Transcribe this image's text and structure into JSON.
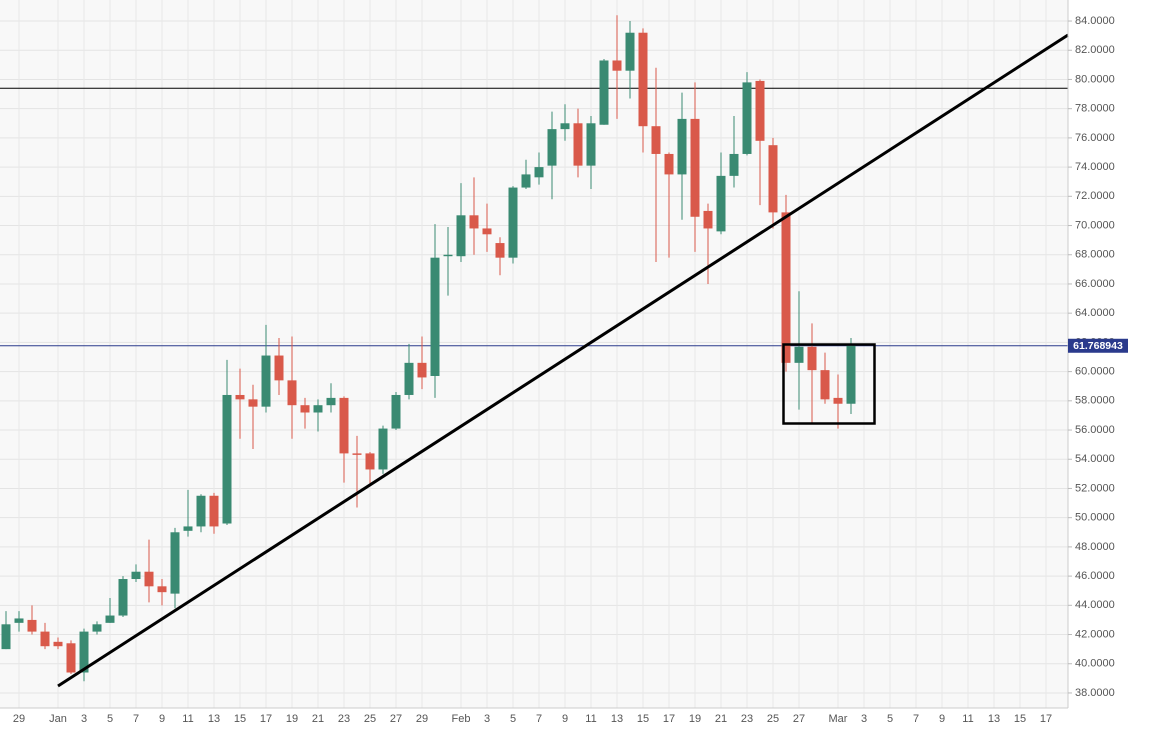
{
  "chart_data": {
    "type": "candlestick",
    "categories": [
      null,
      "29",
      null,
      null,
      "Jan",
      null,
      "3",
      null,
      "5",
      null,
      "7",
      null,
      "9",
      null,
      "11",
      null,
      "13",
      null,
      "15",
      null,
      "17",
      null,
      "19",
      null,
      "21",
      null,
      "23",
      null,
      "25",
      null,
      "27",
      null,
      "29",
      null,
      null,
      "Feb",
      null,
      "3",
      null,
      "5",
      null,
      "7",
      null,
      "9",
      null,
      "11",
      null,
      "13",
      null,
      "15",
      null,
      "17",
      null,
      "19",
      null,
      "21",
      null,
      "23",
      null,
      "25",
      null,
      "27",
      null,
      null,
      "Mar",
      null,
      "3",
      null,
      "5",
      null,
      "7",
      null,
      "9",
      null,
      "11",
      null,
      "13",
      null,
      "15",
      null,
      "17",
      null
    ],
    "open": [
      41.0,
      42.8,
      43.0,
      42.2,
      41.5,
      41.4,
      39.4,
      42.2,
      42.8,
      43.3,
      45.8,
      46.3,
      45.3,
      44.8,
      49.1,
      49.4,
      51.5,
      49.6,
      58.4,
      58.1,
      57.6,
      61.1,
      59.4,
      57.7,
      57.2,
      57.7,
      58.2,
      54.4,
      54.4,
      53.3,
      56.1,
      58.4,
      60.6,
      59.7,
      67.9,
      67.9,
      70.7,
      69.8,
      68.8,
      67.8,
      72.6,
      73.3,
      74.1,
      76.6,
      77.0,
      74.1,
      76.9,
      81.3,
      80.6,
      83.2,
      76.8,
      74.9,
      73.5,
      77.3,
      71.0,
      69.6,
      73.4,
      74.9,
      79.9,
      75.5,
      70.9,
      60.6,
      61.7,
      60.1,
      58.2,
      57.8,
      null,
      null,
      null,
      null,
      null,
      null,
      null,
      null,
      null,
      null,
      null,
      null,
      null,
      null,
      null,
      null
    ],
    "high": [
      43.6,
      43.6,
      44.0,
      42.8,
      41.8,
      41.6,
      42.4,
      42.9,
      44.5,
      46.0,
      46.8,
      48.5,
      45.8,
      49.3,
      51.9,
      51.6,
      51.7,
      60.8,
      60.2,
      59.1,
      63.2,
      62.3,
      62.4,
      58.2,
      58.1,
      59.2,
      58.3,
      55.6,
      54.5,
      56.3,
      58.6,
      61.9,
      62.4,
      70.1,
      69.9,
      72.9,
      73.3,
      71.5,
      69.2,
      72.7,
      74.5,
      75.0,
      77.8,
      78.3,
      78.0,
      77.5,
      81.4,
      84.4,
      84.0,
      83.5,
      80.8,
      75.0,
      79.1,
      79.8,
      71.5,
      75.0,
      77.5,
      80.5,
      80.0,
      76.0,
      72.1,
      65.5,
      63.3,
      61.3,
      59.8,
      62.3,
      null,
      null,
      null,
      null,
      null,
      null,
      null,
      null,
      null,
      null,
      null,
      null,
      null,
      null,
      null,
      null
    ],
    "low": [
      41.0,
      42.2,
      42.0,
      41.0,
      41.0,
      39.3,
      38.8,
      42.0,
      42.8,
      43.2,
      45.6,
      44.2,
      44.0,
      43.8,
      48.7,
      49.0,
      48.9,
      49.5,
      55.4,
      54.7,
      57.2,
      58.4,
      55.4,
      56.1,
      55.9,
      57.2,
      52.4,
      50.7,
      52.3,
      53.0,
      56.0,
      58.1,
      58.8,
      58.2,
      65.2,
      67.5,
      68.0,
      68.2,
      66.6,
      67.4,
      72.5,
      72.8,
      71.8,
      75.8,
      73.3,
      72.5,
      76.9,
      77.3,
      78.7,
      75.0,
      67.5,
      67.8,
      70.4,
      68.2,
      66.0,
      69.4,
      72.6,
      74.8,
      71.4,
      69.8,
      60.0,
      57.4,
      56.5,
      57.8,
      56.1,
      57.1,
      null,
      null,
      null,
      null,
      null,
      null,
      null,
      null,
      null,
      null,
      null,
      null,
      null,
      null,
      null,
      null
    ],
    "close": [
      42.7,
      43.1,
      42.2,
      41.2,
      41.2,
      39.4,
      42.2,
      42.7,
      43.3,
      45.8,
      46.3,
      45.3,
      44.9,
      49.0,
      49.4,
      51.5,
      49.4,
      58.4,
      58.1,
      57.6,
      61.1,
      59.4,
      57.7,
      57.2,
      57.7,
      58.2,
      54.4,
      54.3,
      53.3,
      56.1,
      58.4,
      60.6,
      59.6,
      67.8,
      68.0,
      70.7,
      69.8,
      69.4,
      67.8,
      72.6,
      73.5,
      74.0,
      76.6,
      77.0,
      74.1,
      77.0,
      81.3,
      80.6,
      83.2,
      76.8,
      74.9,
      73.5,
      77.3,
      70.6,
      69.8,
      73.4,
      74.9,
      79.8,
      75.8,
      70.9,
      60.6,
      61.7,
      60.1,
      58.1,
      57.8,
      61.768943,
      null,
      null,
      null,
      null,
      null,
      null,
      null,
      null,
      null,
      null,
      null,
      null,
      null,
      null,
      null,
      null
    ],
    "up_color": "#3a8a72",
    "down_color": "#d9594a",
    "ylim": [
      36.97,
      85.44
    ],
    "yticks": [
      {
        "value": 38,
        "label": "38.0000"
      },
      {
        "value": 40,
        "label": "40.0000"
      },
      {
        "value": 42,
        "label": "42.0000"
      },
      {
        "value": 44,
        "label": "44.0000"
      },
      {
        "value": 46,
        "label": "46.0000"
      },
      {
        "value": 48,
        "label": "48.0000"
      },
      {
        "value": 50,
        "label": "50.0000"
      },
      {
        "value": 52,
        "label": "52.0000"
      },
      {
        "value": 54,
        "label": "54.0000"
      },
      {
        "value": 56,
        "label": "56.0000"
      },
      {
        "value": 58,
        "label": "58.0000"
      },
      {
        "value": 60,
        "label": "60.0000"
      },
      {
        "value": 62,
        "label": "62.0000"
      },
      {
        "value": 64,
        "label": "64.0000"
      },
      {
        "value": 66,
        "label": "66.0000"
      },
      {
        "value": 68,
        "label": "68.0000"
      },
      {
        "value": 70,
        "label": "70.0000"
      },
      {
        "value": 72,
        "label": "72.0000"
      },
      {
        "value": 74,
        "label": "74.0000"
      },
      {
        "value": 76,
        "label": "76.0000"
      },
      {
        "value": 78,
        "label": "78.0000"
      },
      {
        "value": 80,
        "label": "80.0000"
      },
      {
        "value": 82,
        "label": "82.0000"
      },
      {
        "value": 84,
        "label": "84.0000"
      }
    ],
    "grid": true,
    "level_line": {
      "value": 79.4,
      "color": "#000000"
    },
    "price_line": {
      "value": 61.768943,
      "color": "#2a3a8c"
    }
  }
}
